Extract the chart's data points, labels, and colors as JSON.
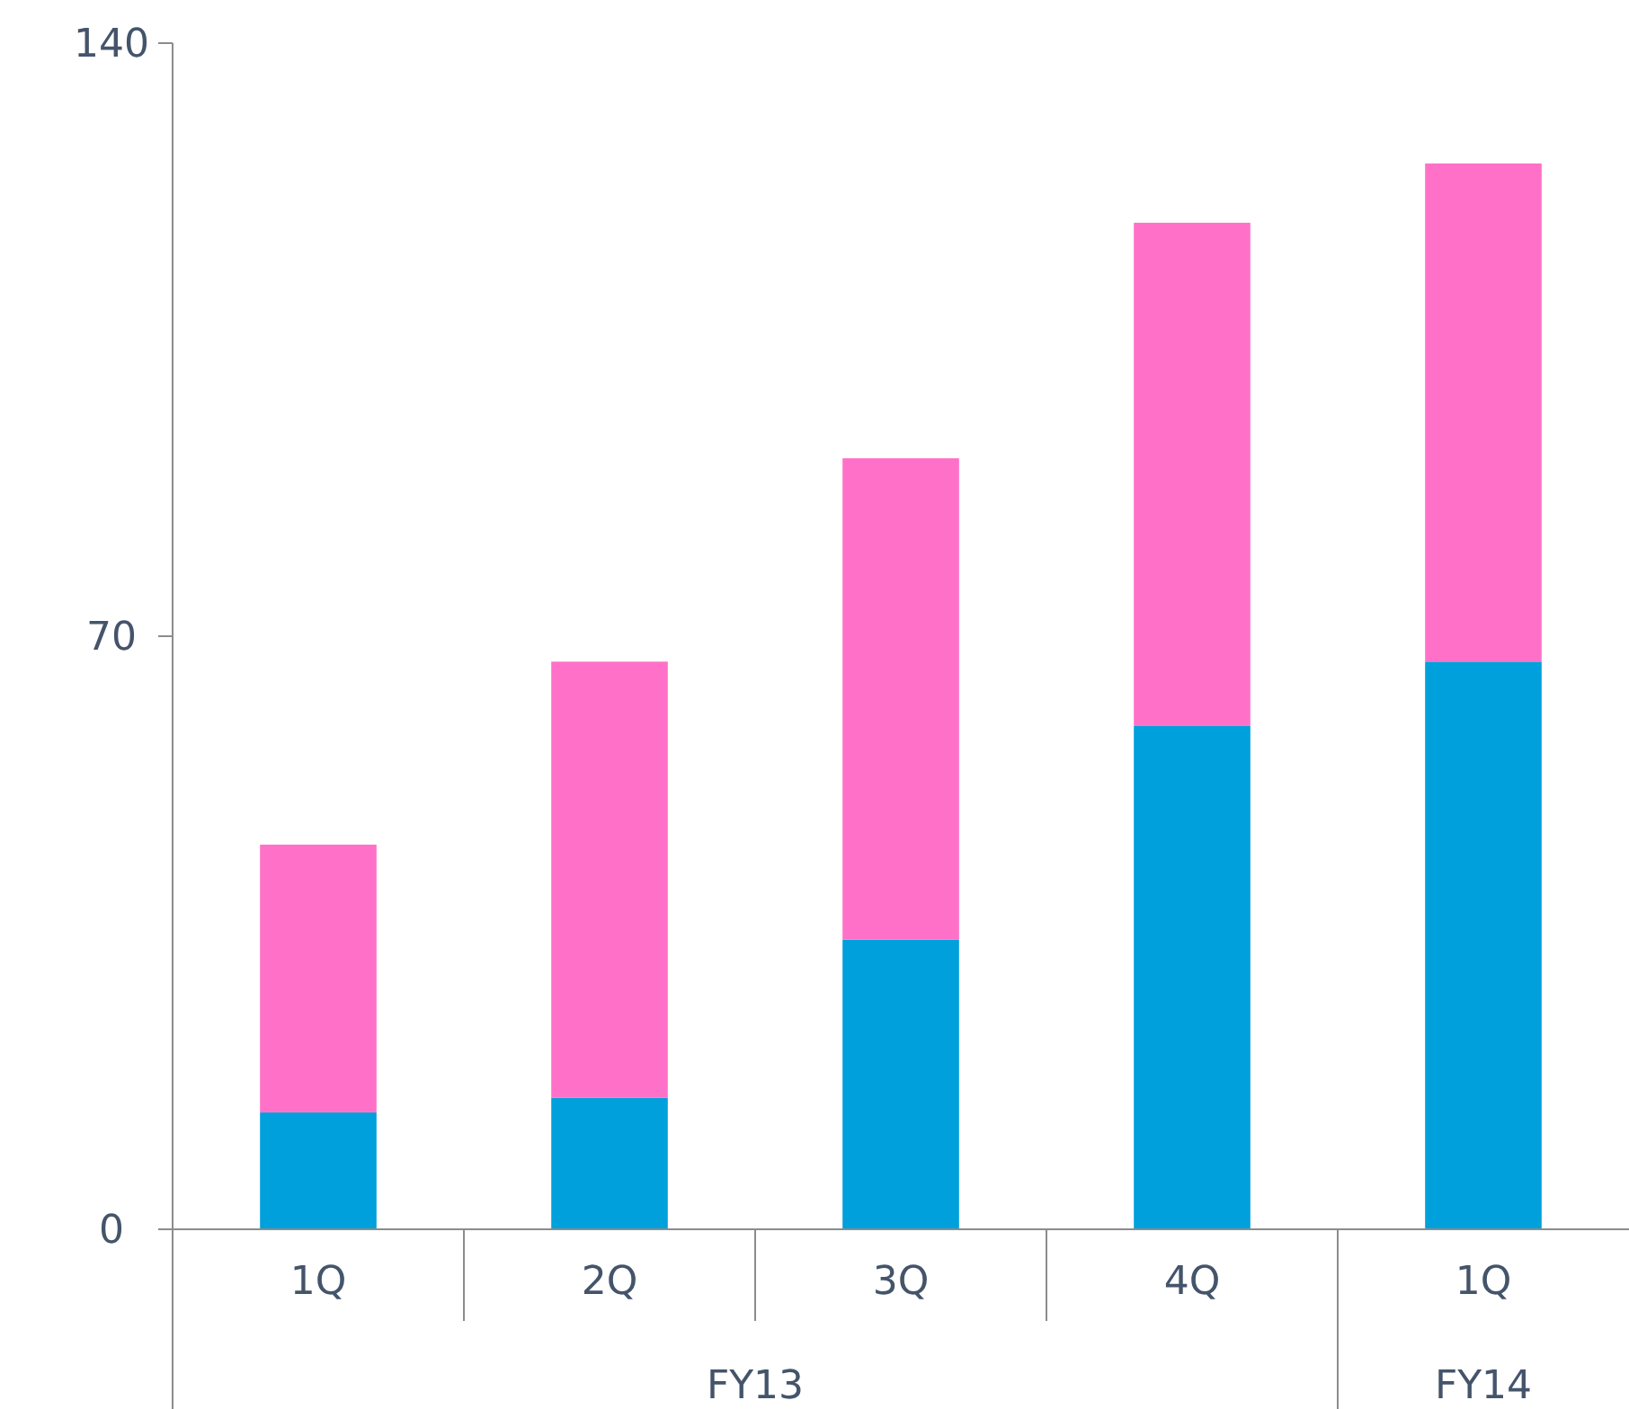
{
  "chart_data": {
    "type": "bar",
    "stacked": true,
    "categories": [
      "1Q",
      "2Q",
      "3Q",
      "4Q",
      "1Q"
    ],
    "series": [
      {
        "color": "#00a0dc",
        "values": [
          13.8,
          15.5,
          34.2,
          59.4,
          67.0
        ]
      },
      {
        "color": "#ff71c8",
        "values": [
          31.6,
          51.5,
          56.8,
          59.4,
          58.8
        ]
      }
    ],
    "ylim": [
      0,
      140
    ],
    "yticks": [
      0,
      70,
      140
    ],
    "annotations": [
      "FY13",
      "FY14"
    ]
  }
}
